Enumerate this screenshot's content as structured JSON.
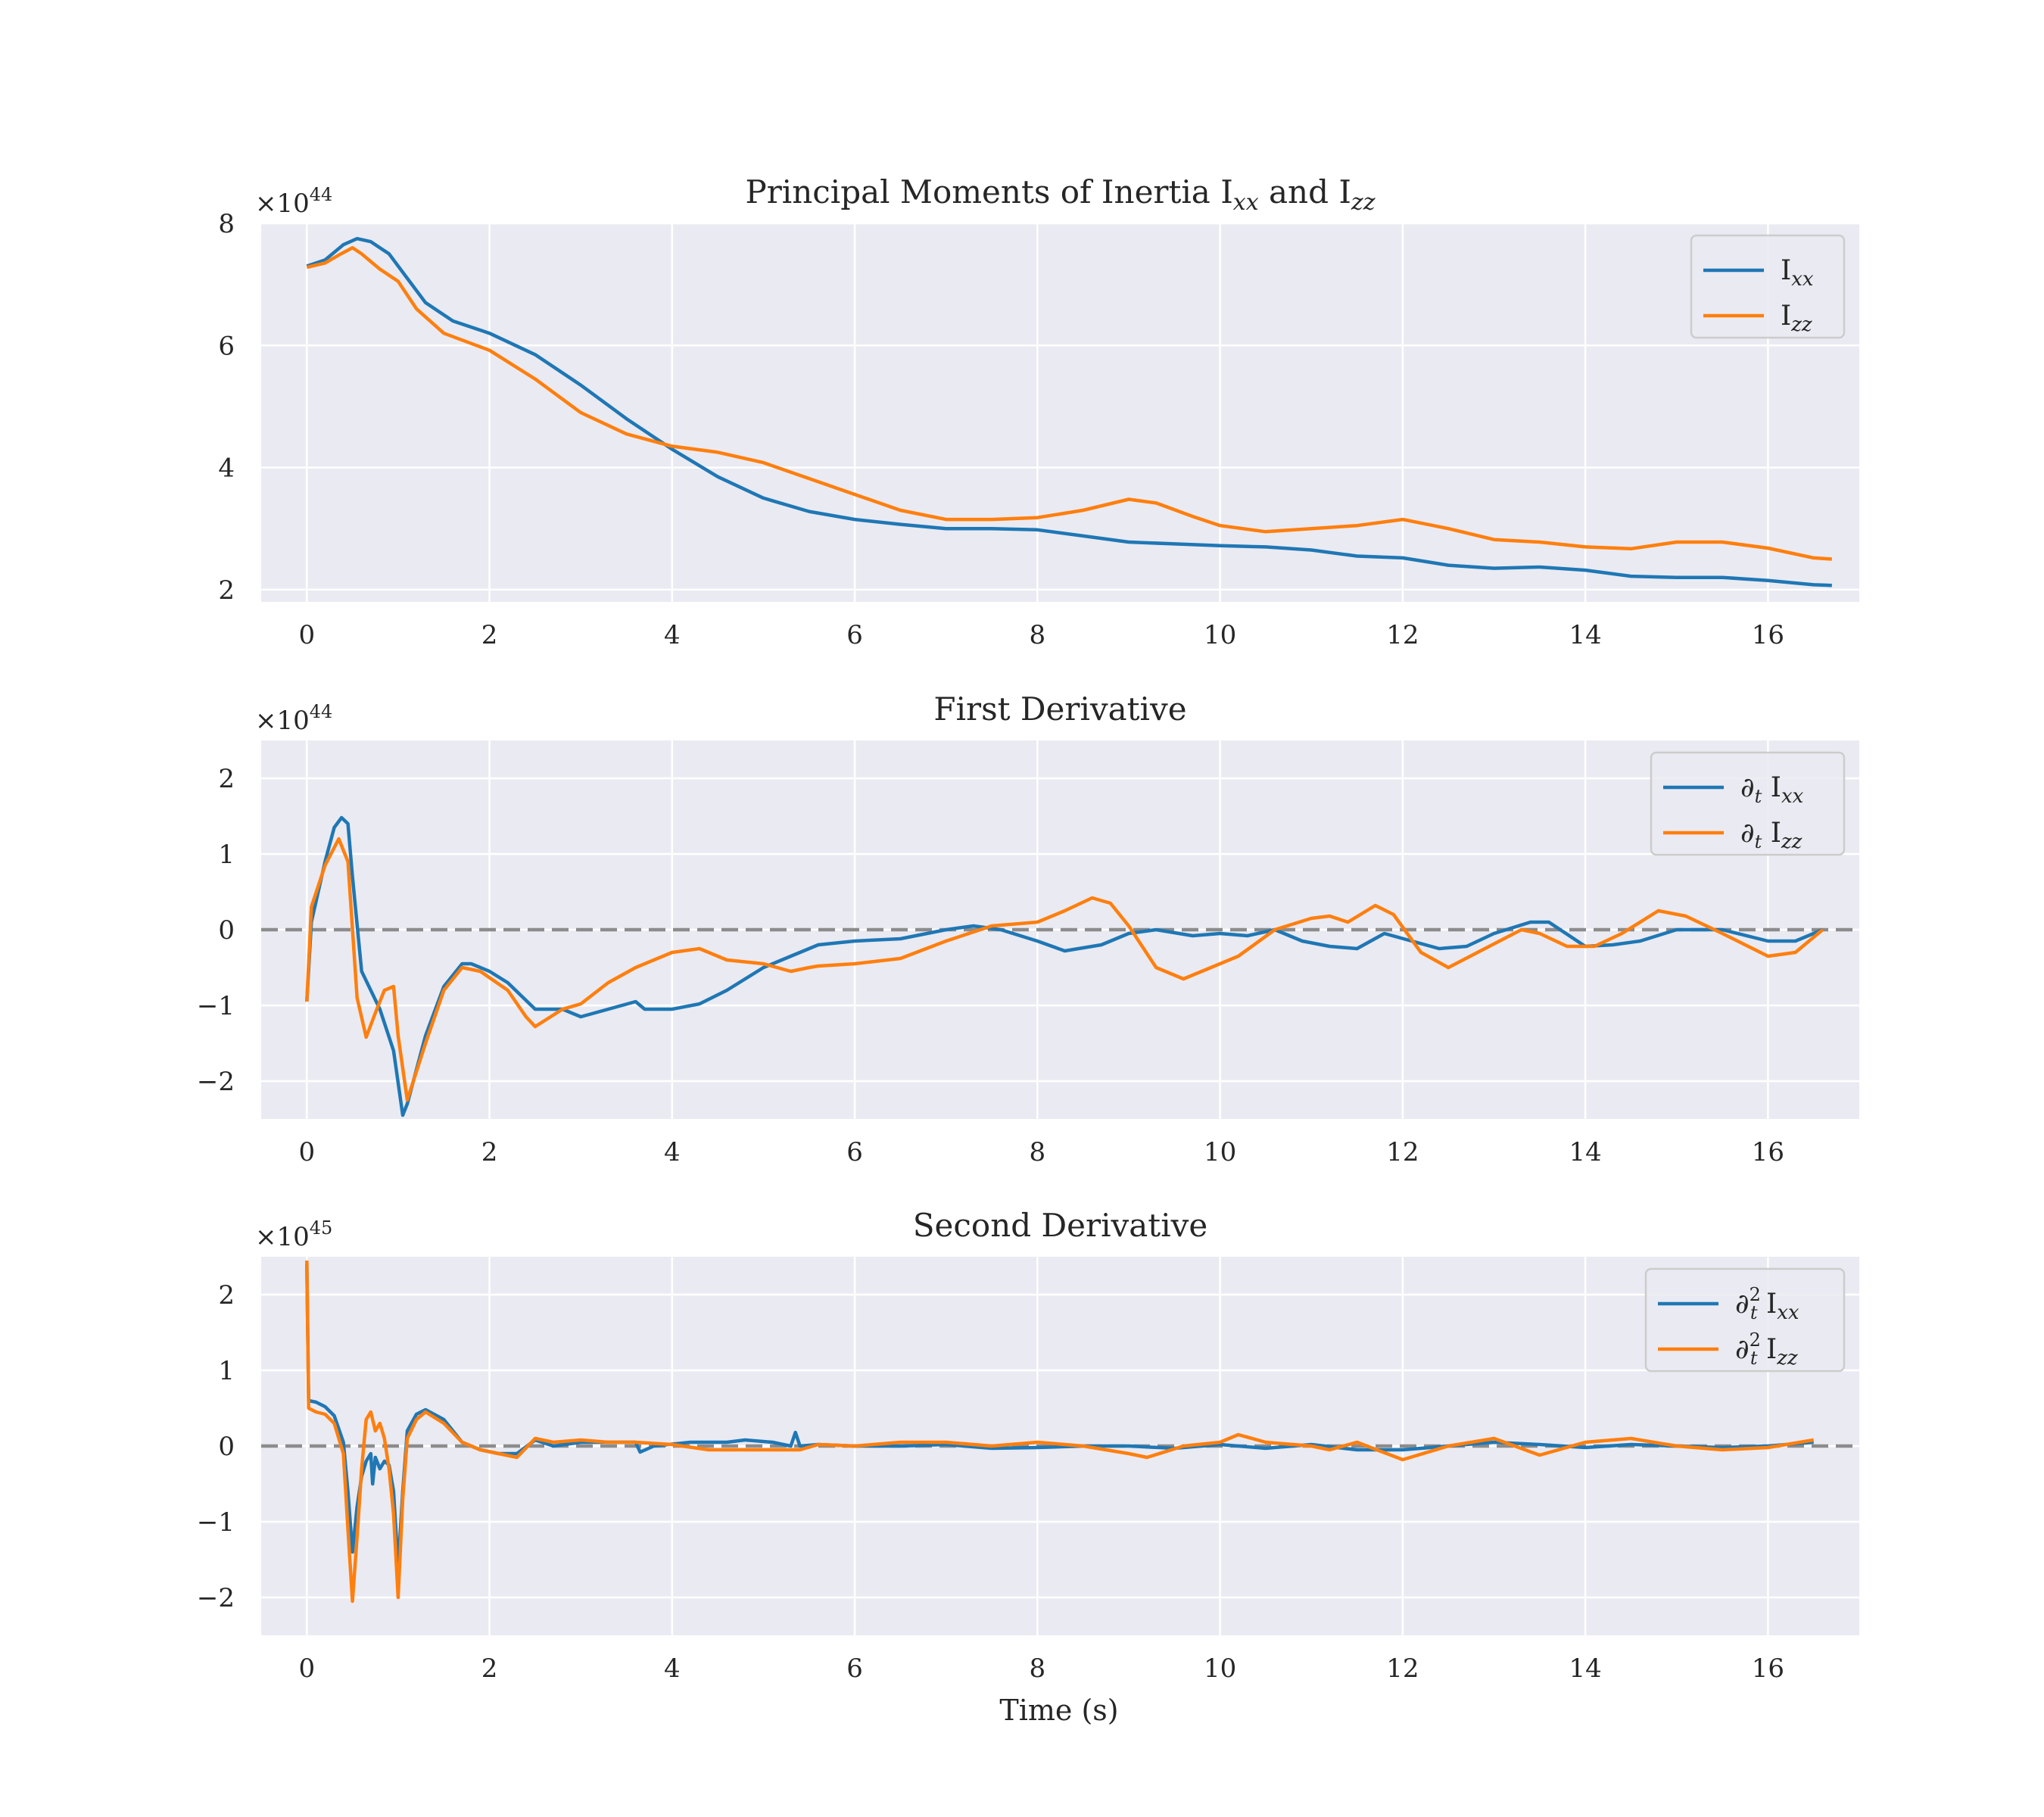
{
  "figure": {
    "xlabel": "Time (s)"
  },
  "colors": {
    "Ixx": "#1f77b4",
    "Izz": "#ff7f0e",
    "zero_line": "#8c8c8c",
    "plot_bg": "#eaeaf2",
    "grid": "#ffffff"
  },
  "chart_data": [
    {
      "type": "line",
      "title": "Principal Moments of Inertia I_xx and I_zz",
      "title_parts": [
        "Principal Moments of Inertia I",
        "xx",
        " and I",
        "zz"
      ],
      "exponent_label": "×10",
      "exponent": "44",
      "xlim": [
        -0.5,
        17
      ],
      "ylim": [
        1.8,
        8
      ],
      "xticks": [
        0,
        2,
        4,
        6,
        8,
        10,
        12,
        14,
        16
      ],
      "yticks": [
        2,
        4,
        6,
        8
      ],
      "ytick_labels": [
        "2",
        "4",
        "6",
        "8"
      ],
      "zero_line": false,
      "legend": "top-right",
      "series": [
        {
          "name": "I_xx",
          "legend_prefix": "I",
          "legend_sub": "xx",
          "color": "#1f77b4",
          "x": [
            0,
            0.2,
            0.4,
            0.55,
            0.7,
            0.9,
            1.1,
            1.3,
            1.6,
            2.0,
            2.5,
            3.0,
            3.5,
            4.0,
            4.5,
            5.0,
            5.5,
            6.0,
            6.5,
            7.0,
            7.5,
            8.0,
            8.5,
            9.0,
            9.5,
            10.0,
            10.5,
            11.0,
            11.5,
            12.0,
            12.5,
            13.0,
            13.5,
            14.0,
            14.5,
            15.0,
            15.5,
            16.0,
            16.5,
            16.7
          ],
          "y": [
            7.3,
            7.4,
            7.65,
            7.75,
            7.7,
            7.5,
            7.1,
            6.7,
            6.4,
            6.2,
            5.85,
            5.35,
            4.8,
            4.3,
            3.85,
            3.5,
            3.28,
            3.15,
            3.07,
            3.0,
            3.0,
            2.98,
            2.88,
            2.78,
            2.75,
            2.72,
            2.7,
            2.65,
            2.55,
            2.52,
            2.4,
            2.35,
            2.37,
            2.32,
            2.22,
            2.2,
            2.2,
            2.15,
            2.08,
            2.07
          ]
        },
        {
          "name": "I_zz",
          "legend_prefix": "I",
          "legend_sub": "zz",
          "color": "#ff7f0e",
          "x": [
            0,
            0.2,
            0.35,
            0.5,
            0.6,
            0.8,
            1.0,
            1.2,
            1.5,
            2.0,
            2.5,
            3.0,
            3.5,
            4.0,
            4.5,
            5.0,
            5.5,
            6.0,
            6.5,
            7.0,
            7.5,
            8.0,
            8.5,
            9.0,
            9.3,
            9.7,
            10.0,
            10.5,
            11.0,
            11.5,
            12.0,
            12.5,
            13.0,
            13.5,
            14.0,
            14.5,
            15.0,
            15.5,
            16.0,
            16.5,
            16.7
          ],
          "y": [
            7.28,
            7.35,
            7.48,
            7.6,
            7.5,
            7.25,
            7.05,
            6.6,
            6.2,
            5.92,
            5.45,
            4.9,
            4.55,
            4.35,
            4.25,
            4.08,
            3.82,
            3.56,
            3.3,
            3.15,
            3.15,
            3.18,
            3.3,
            3.48,
            3.42,
            3.2,
            3.05,
            2.95,
            3.0,
            3.05,
            3.15,
            3.0,
            2.82,
            2.78,
            2.7,
            2.67,
            2.78,
            2.78,
            2.68,
            2.52,
            2.5
          ]
        }
      ]
    },
    {
      "type": "line",
      "title": "First Derivative",
      "title_parts": [
        "First Derivative",
        "",
        "",
        ""
      ],
      "exponent_label": "×10",
      "exponent": "44",
      "xlim": [
        -0.5,
        17
      ],
      "ylim": [
        -2.5,
        2.5
      ],
      "xticks": [
        0,
        2,
        4,
        6,
        8,
        10,
        12,
        14,
        16
      ],
      "yticks": [
        -2,
        -1,
        0,
        1,
        2
      ],
      "ytick_labels": [
        "−2",
        "−1",
        "0",
        "1",
        "2"
      ],
      "zero_line": true,
      "legend": "top-right",
      "series": [
        {
          "name": "∂_t I_xx",
          "legend_prefix": "∂",
          "legend_prefix_sub": "t",
          "legend_text": "I",
          "legend_sub": "xx",
          "color": "#1f77b4",
          "x": [
            0,
            0.05,
            0.2,
            0.3,
            0.38,
            0.45,
            0.5,
            0.6,
            0.8,
            0.95,
            1.05,
            1.1,
            1.3,
            1.5,
            1.7,
            1.8,
            2.0,
            2.2,
            2.5,
            2.8,
            3.0,
            3.3,
            3.6,
            3.7,
            4.0,
            4.3,
            4.6,
            5.0,
            5.3,
            5.4,
            5.6,
            6.0,
            6.5,
            7.0,
            7.3,
            7.6,
            8.0,
            8.3,
            8.7,
            9.0,
            9.3,
            9.7,
            10.0,
            10.3,
            10.6,
            10.9,
            11.2,
            11.5,
            11.8,
            12.1,
            12.4,
            12.7,
            13.0,
            13.4,
            13.6,
            14.0,
            14.3,
            14.6,
            15.0,
            15.5,
            16.0,
            16.3,
            16.6
          ],
          "y": [
            -0.95,
            0.1,
            0.9,
            1.35,
            1.48,
            1.4,
            0.7,
            -0.55,
            -1.05,
            -1.6,
            -2.45,
            -2.3,
            -1.4,
            -0.75,
            -0.45,
            -0.45,
            -0.55,
            -0.7,
            -1.05,
            -1.05,
            -1.15,
            -1.05,
            -0.95,
            -1.05,
            -1.05,
            -0.98,
            -0.8,
            -0.5,
            -0.35,
            -0.3,
            -0.2,
            -0.15,
            -0.12,
            0.0,
            0.05,
            0.0,
            -0.15,
            -0.28,
            -0.2,
            -0.05,
            0.0,
            -0.08,
            -0.05,
            -0.08,
            0.0,
            -0.15,
            -0.22,
            -0.25,
            -0.05,
            -0.15,
            -0.25,
            -0.22,
            -0.05,
            0.1,
            0.1,
            -0.22,
            -0.2,
            -0.15,
            0.0,
            0.0,
            -0.15,
            -0.15,
            0.0
          ]
        },
        {
          "name": "∂_t I_zz",
          "legend_prefix": "∂",
          "legend_prefix_sub": "t",
          "legend_text": "I",
          "legend_sub": "zz",
          "color": "#ff7f0e",
          "x": [
            0,
            0.05,
            0.2,
            0.35,
            0.45,
            0.55,
            0.65,
            0.75,
            0.85,
            0.95,
            1.0,
            1.1,
            1.3,
            1.5,
            1.7,
            1.9,
            2.2,
            2.4,
            2.5,
            2.8,
            3.0,
            3.3,
            3.6,
            4.0,
            4.3,
            4.6,
            5.0,
            5.3,
            5.5,
            5.6,
            6.0,
            6.5,
            7.0,
            7.5,
            8.0,
            8.3,
            8.6,
            8.8,
            9.0,
            9.3,
            9.6,
            9.9,
            10.2,
            10.6,
            11.0,
            11.2,
            11.4,
            11.7,
            11.9,
            12.2,
            12.5,
            12.9,
            13.3,
            13.5,
            13.8,
            14.1,
            14.4,
            14.8,
            15.1,
            15.5,
            16.0,
            16.3,
            16.6
          ],
          "y": [
            -0.95,
            0.3,
            0.85,
            1.2,
            0.9,
            -0.9,
            -1.42,
            -1.1,
            -0.8,
            -0.75,
            -1.4,
            -2.25,
            -1.5,
            -0.8,
            -0.5,
            -0.55,
            -0.8,
            -1.15,
            -1.28,
            -1.05,
            -0.98,
            -0.7,
            -0.5,
            -0.3,
            -0.25,
            -0.4,
            -0.45,
            -0.55,
            -0.5,
            -0.48,
            -0.45,
            -0.38,
            -0.15,
            0.05,
            0.1,
            0.25,
            0.42,
            0.35,
            0.05,
            -0.5,
            -0.65,
            -0.5,
            -0.35,
            0.0,
            0.15,
            0.18,
            0.1,
            0.32,
            0.2,
            -0.3,
            -0.5,
            -0.25,
            0.0,
            -0.05,
            -0.22,
            -0.22,
            -0.05,
            0.25,
            0.18,
            -0.05,
            -0.35,
            -0.3,
            0.0
          ]
        }
      ]
    },
    {
      "type": "line",
      "title": "Second Derivative",
      "title_parts": [
        "Second Derivative",
        "",
        "",
        ""
      ],
      "exponent_label": "×10",
      "exponent": "45",
      "xlim": [
        -0.5,
        17
      ],
      "ylim": [
        -2.5,
        2.5
      ],
      "xticks": [
        0,
        2,
        4,
        6,
        8,
        10,
        12,
        14,
        16
      ],
      "yticks": [
        -2,
        -1,
        0,
        1,
        2
      ],
      "ytick_labels": [
        "−2",
        "−1",
        "0",
        "1",
        "2"
      ],
      "zero_line": true,
      "legend": "top-right",
      "series": [
        {
          "name": "∂_t² I_xx",
          "legend_prefix": "∂",
          "legend_prefix_sub": "t",
          "legend_sup": "2",
          "legend_text": "I",
          "legend_sub": "xx",
          "color": "#1f77b4",
          "x": [
            0,
            0.02,
            0.1,
            0.2,
            0.3,
            0.4,
            0.45,
            0.5,
            0.55,
            0.6,
            0.65,
            0.7,
            0.72,
            0.75,
            0.8,
            0.85,
            0.9,
            0.95,
            1.0,
            1.05,
            1.1,
            1.2,
            1.3,
            1.5,
            1.7,
            1.9,
            2.1,
            2.3,
            2.5,
            2.7,
            3.0,
            3.3,
            3.6,
            3.65,
            3.8,
            4.2,
            4.6,
            4.8,
            5.1,
            5.3,
            5.35,
            5.4,
            5.6,
            6.0,
            6.5,
            7.0,
            7.5,
            8.0,
            8.5,
            9.0,
            9.5,
            10.0,
            10.5,
            11.0,
            11.5,
            12.0,
            12.5,
            13.0,
            13.5,
            14.0,
            14.5,
            15.0,
            15.5,
            16.0,
            16.5
          ],
          "y": [
            2.4,
            0.6,
            0.58,
            0.52,
            0.4,
            0.05,
            -0.6,
            -1.4,
            -0.8,
            -0.4,
            -0.2,
            -0.1,
            -0.5,
            -0.15,
            -0.3,
            -0.2,
            -0.25,
            -0.6,
            -1.6,
            -0.6,
            0.2,
            0.42,
            0.48,
            0.35,
            0.05,
            -0.05,
            -0.1,
            -0.1,
            0.08,
            0.0,
            0.05,
            0.05,
            0.05,
            -0.08,
            0.0,
            0.05,
            0.05,
            0.08,
            0.05,
            0.0,
            0.18,
            0.0,
            0.02,
            0.0,
            0.0,
            0.02,
            -0.03,
            -0.02,
            0.0,
            0.0,
            -0.03,
            0.02,
            -0.03,
            0.02,
            -0.05,
            -0.05,
            0.0,
            0.05,
            0.02,
            -0.02,
            0.02,
            0.0,
            -0.02,
            0.0,
            0.05
          ]
        },
        {
          "name": "∂_t² I_zz",
          "legend_prefix": "∂",
          "legend_prefix_sub": "t",
          "legend_sup": "2",
          "legend_text": "I",
          "legend_sub": "zz",
          "color": "#ff7f0e",
          "x": [
            0,
            0.02,
            0.1,
            0.2,
            0.3,
            0.4,
            0.45,
            0.5,
            0.55,
            0.6,
            0.65,
            0.7,
            0.75,
            0.8,
            0.85,
            0.9,
            0.95,
            1.0,
            1.05,
            1.1,
            1.2,
            1.3,
            1.5,
            1.7,
            1.9,
            2.1,
            2.3,
            2.5,
            2.7,
            3.0,
            3.3,
            3.6,
            4.0,
            4.4,
            4.8,
            5.1,
            5.4,
            5.6,
            6.0,
            6.5,
            7.0,
            7.5,
            8.0,
            8.5,
            9.0,
            9.2,
            9.6,
            10.0,
            10.2,
            10.5,
            11.0,
            11.2,
            11.5,
            12.0,
            12.5,
            13.0,
            13.5,
            14.0,
            14.5,
            15.0,
            15.5,
            16.0,
            16.5
          ],
          "y": [
            2.45,
            0.5,
            0.45,
            0.42,
            0.3,
            -0.1,
            -1.1,
            -2.05,
            -1.2,
            -0.3,
            0.35,
            0.45,
            0.2,
            0.3,
            0.1,
            -0.3,
            -0.9,
            -2.0,
            -0.7,
            0.1,
            0.35,
            0.45,
            0.3,
            0.05,
            -0.05,
            -0.1,
            -0.15,
            0.1,
            0.05,
            0.08,
            0.05,
            0.05,
            0.02,
            -0.05,
            -0.05,
            -0.05,
            -0.05,
            0.02,
            0.0,
            0.05,
            0.05,
            0.0,
            0.05,
            0.0,
            -0.1,
            -0.15,
            0.0,
            0.05,
            0.15,
            0.05,
            0.0,
            -0.05,
            0.05,
            -0.18,
            0.0,
            0.1,
            -0.12,
            0.05,
            0.1,
            0.0,
            -0.05,
            -0.02,
            0.08
          ]
        }
      ]
    }
  ]
}
